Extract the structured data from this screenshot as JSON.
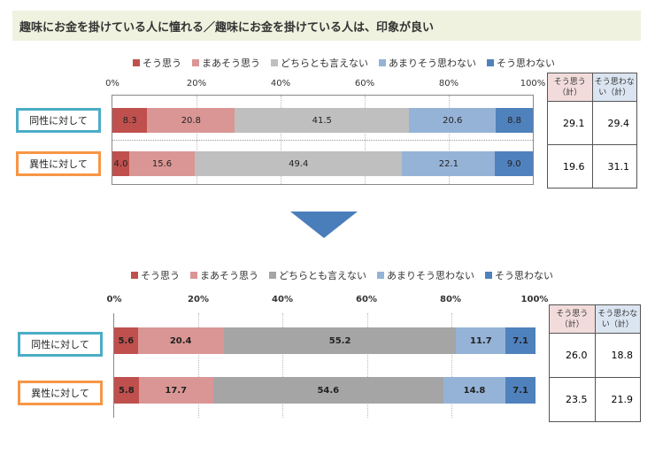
{
  "title": "趣味にお金を掛けている人に憧れる／趣味にお金を掛けている人は、印象が良い",
  "colors": {
    "s1": "#c0504d",
    "s2": "#da9694",
    "s3": "#bfbfbf",
    "s4": "#95b3d7",
    "s5": "#4f81bd",
    "s3b": "#a5a5a5"
  },
  "chart_data": [
    {
      "type": "bar",
      "orientation": "horizontal-stacked-100",
      "legend": [
        "そう思う",
        "まあそう思う",
        "どちらとも言えない",
        "あまりそう思わない",
        "そう思わない"
      ],
      "ticks": [
        "0%",
        "20%",
        "40%",
        "60%",
        "80%",
        "100%"
      ],
      "categories": [
        "同性に対して",
        "異性に対して"
      ],
      "series": [
        {
          "name": "そう思う",
          "values": [
            8.3,
            4.0
          ]
        },
        {
          "name": "まあそう思う",
          "values": [
            20.8,
            15.6
          ]
        },
        {
          "name": "どちらとも言えない",
          "values": [
            41.5,
            49.4
          ]
        },
        {
          "name": "あまりそう思わない",
          "values": [
            20.6,
            22.1
          ]
        },
        {
          "name": "そう思わない",
          "values": [
            8.8,
            9.0
          ]
        }
      ],
      "table": {
        "headers": [
          "そう思う（計）",
          "そう思わない（計）"
        ],
        "rows": [
          [
            "29.1",
            "29.4"
          ],
          [
            "19.6",
            "31.1"
          ]
        ]
      }
    },
    {
      "type": "bar",
      "orientation": "horizontal-stacked-100",
      "legend": [
        "そう思う",
        "まあそう思う",
        "どちらとも言えない",
        "あまりそう思わない",
        "そう思わない"
      ],
      "ticks": [
        "0%",
        "20%",
        "40%",
        "60%",
        "80%",
        "100%"
      ],
      "categories": [
        "同性に対して",
        "異性に対して"
      ],
      "series": [
        {
          "name": "そう思う",
          "values": [
            5.6,
            5.8
          ]
        },
        {
          "name": "まあそう思う",
          "values": [
            20.4,
            17.7
          ]
        },
        {
          "name": "どちらとも言えない",
          "values": [
            55.2,
            54.6
          ]
        },
        {
          "name": "あまりそう思わない",
          "values": [
            11.7,
            14.8
          ]
        },
        {
          "name": "そう思わない",
          "values": [
            7.1,
            7.1
          ]
        }
      ],
      "table": {
        "headers": [
          "そう思う（計）",
          "そう思わない（計）"
        ],
        "rows": [
          [
            "26.0",
            "18.8"
          ],
          [
            "23.5",
            "21.9"
          ]
        ]
      }
    }
  ]
}
